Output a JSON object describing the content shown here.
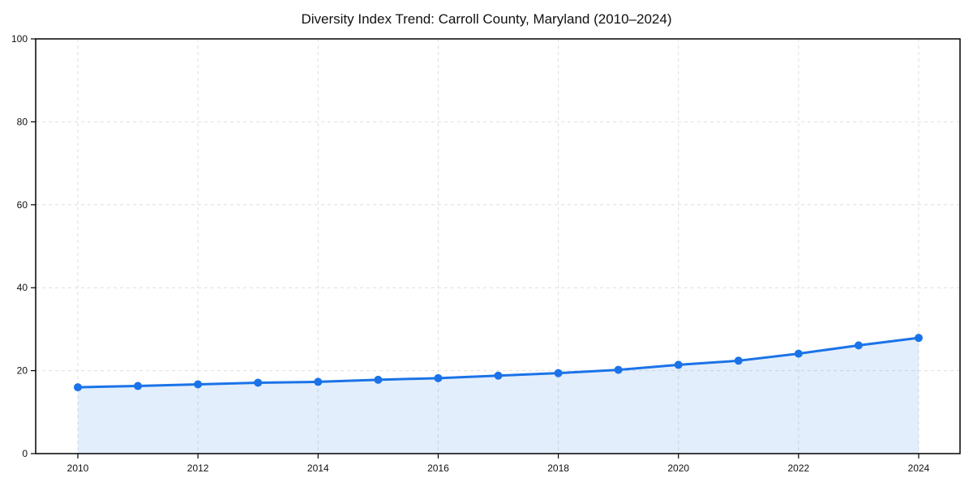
{
  "page": {
    "background_color": "#ffffff"
  },
  "chart_data": {
    "type": "line",
    "title": "Diversity Index Trend: Carroll County, Maryland (2010–2024)",
    "xlabel": "",
    "ylabel": "",
    "x": [
      2010,
      2011,
      2012,
      2013,
      2014,
      2015,
      2016,
      2017,
      2018,
      2019,
      2020,
      2021,
      2022,
      2023,
      2024
    ],
    "series": [
      {
        "name": "Diversity Index",
        "values": [
          16.0,
          16.3,
          16.7,
          17.1,
          17.3,
          17.8,
          18.2,
          18.8,
          19.4,
          20.2,
          21.4,
          22.4,
          24.1,
          26.1,
          27.9
        ]
      }
    ],
    "xticks": [
      "2010",
      "2012",
      "2014",
      "2016",
      "2018",
      "2020",
      "2022",
      "2024"
    ],
    "yticks": [
      "0",
      "20",
      "40",
      "60",
      "80",
      "100"
    ],
    "xlim": [
      2010,
      2024
    ],
    "ylim": [
      0,
      100
    ],
    "grid": true,
    "grid_style": "dashed",
    "legend": "none",
    "marker": "circle",
    "fill_under_line": true,
    "colors": {
      "line": "#1a73e8",
      "marker": "#1a73e8",
      "fill": "#1a73e8",
      "fill_opacity": 0.12,
      "grid": "#dedede",
      "axis": "#000000",
      "text": "#111111"
    }
  }
}
